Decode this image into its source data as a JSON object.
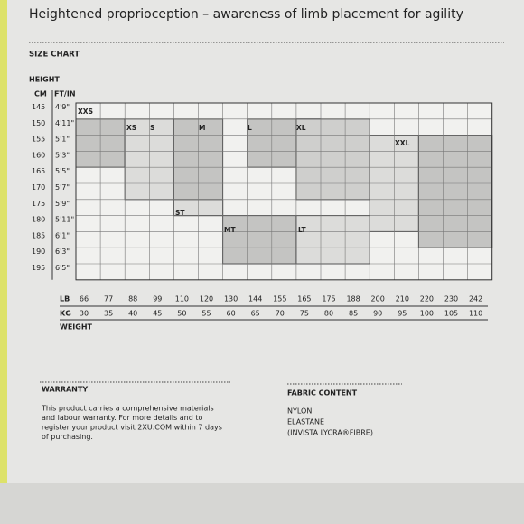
{
  "header": {
    "title": "Heightened proprioception – awareness of limb placement for agility"
  },
  "size_chart": {
    "title": "SIZE CHART",
    "height_label": "HEIGHT",
    "cm_label": "CM",
    "ftin_label": "FT/IN",
    "cm": [
      "145",
      "150",
      "155",
      "160",
      "165",
      "170",
      "175",
      "180",
      "185",
      "190",
      "195"
    ],
    "ftin": [
      "4'9\"",
      "4'11\"",
      "5'1\"",
      "5'3\"",
      "5'5\"",
      "5'7\"",
      "5'9\"",
      "5'11\"",
      "6'1\"",
      "6'3\"",
      "6'5\""
    ],
    "lb_label": "LB",
    "kg_label": "KG",
    "weight_label": "WEIGHT",
    "lb": [
      "66",
      "77",
      "88",
      "99",
      "110",
      "120",
      "130",
      "144",
      "155",
      "165",
      "175",
      "188",
      "200",
      "210",
      "220",
      "230",
      "242"
    ],
    "kg": [
      "30",
      "35",
      "40",
      "45",
      "50",
      "55",
      "60",
      "65",
      "70",
      "75",
      "80",
      "85",
      "90",
      "95",
      "100",
      "105",
      "110"
    ],
    "sizes": [
      "XXS",
      "XS",
      "S",
      "M",
      "L",
      "XL",
      "XXL",
      "ST",
      "MT",
      "LT"
    ]
  },
  "warranty": {
    "title": "WARRANTY",
    "lines": [
      "This product carries a comprehensive materials",
      "and labour warranty. For more details and to",
      "register your product visit 2XU.COM within 7 days",
      "of purchasing."
    ]
  },
  "fabric": {
    "title": "FABRIC CONTENT",
    "lines": [
      "NYLON",
      "ELASTANE",
      "(INVISTA LYCRA®FIBRE)"
    ]
  }
}
